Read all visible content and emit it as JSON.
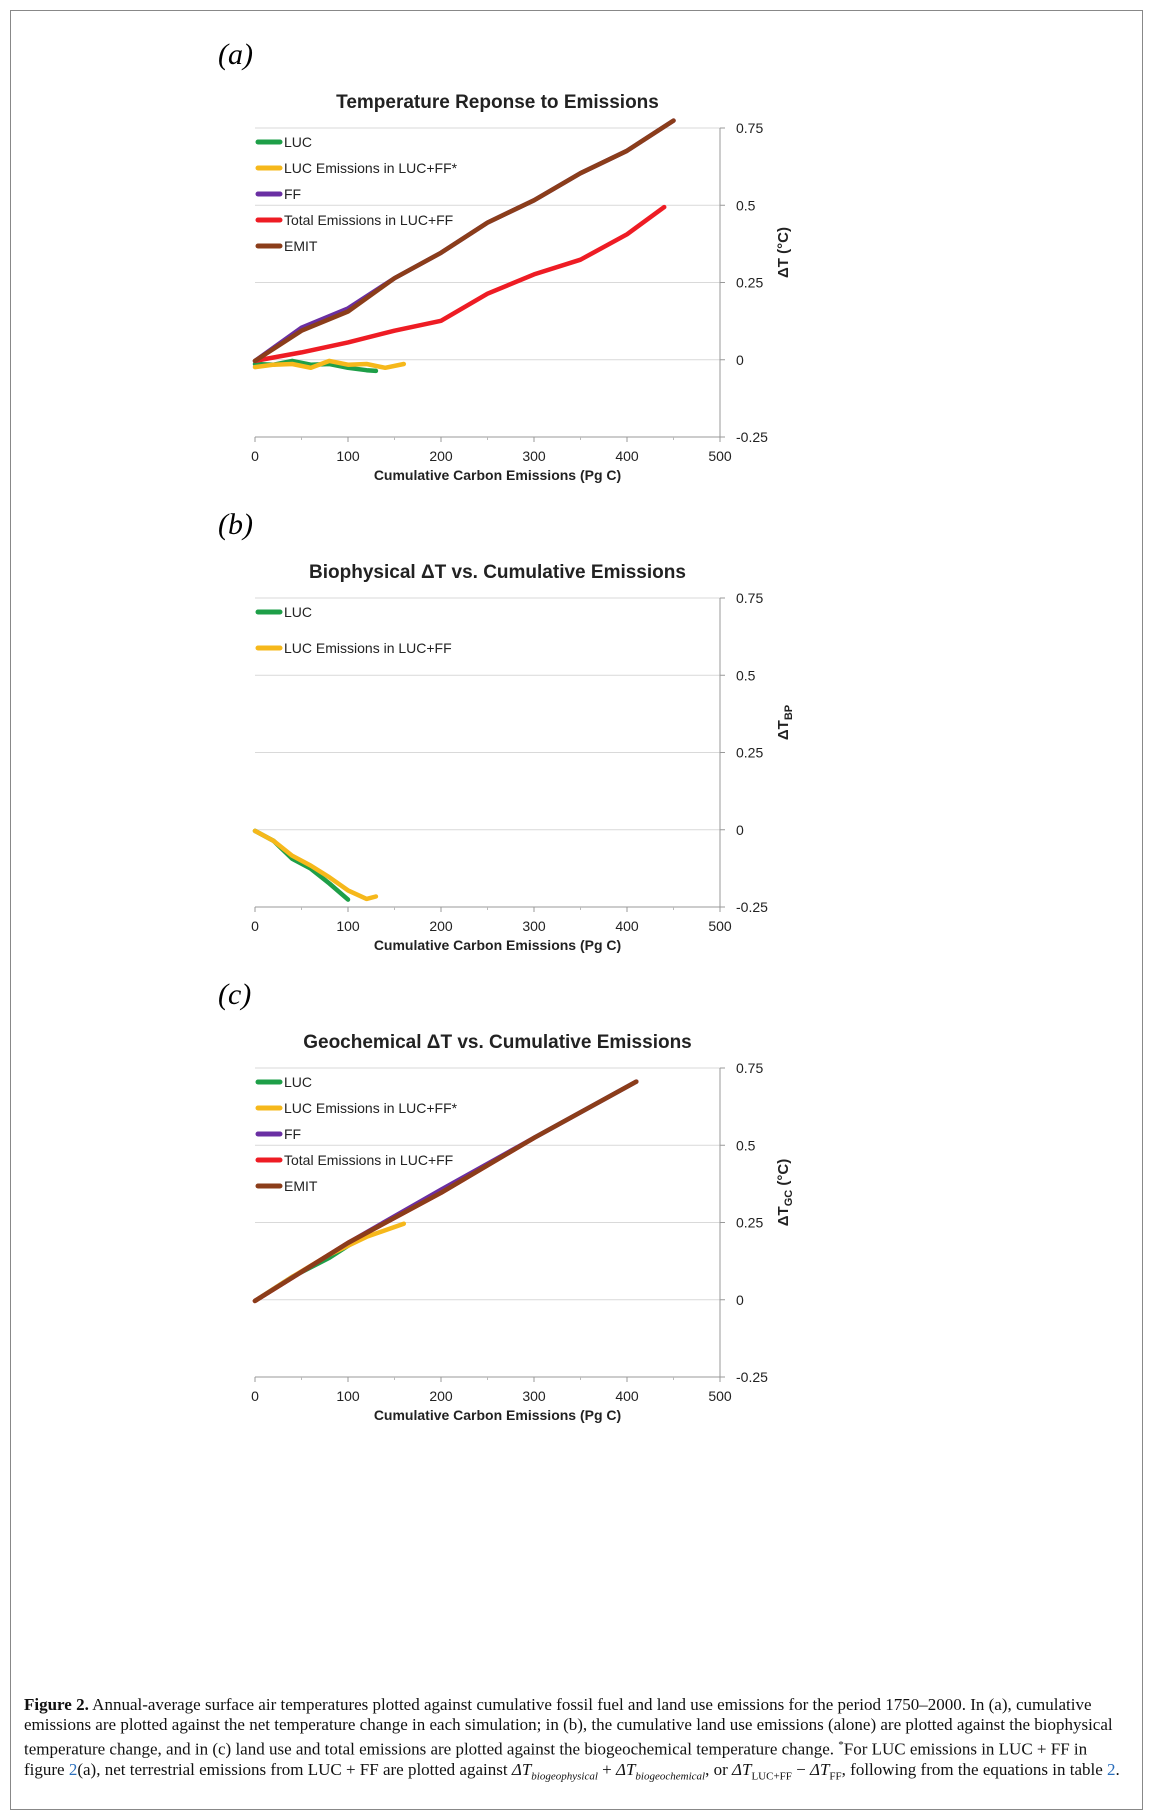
{
  "charts": {
    "colors": {
      "LUC": "#1e9f48",
      "LUC_alt": "#f6b81b",
      "FF": "#6a2fa3",
      "Total": "#ee1c24",
      "EMIT": "#8b3d1a"
    },
    "xticks": [
      "0",
      "100",
      "200",
      "300",
      "400",
      "500"
    ],
    "yticks": [
      "0.75",
      "0.5",
      "0.25",
      "0",
      "-0.25"
    ]
  },
  "chart_data": [
    {
      "type": "line",
      "panel_label": "(a)",
      "title": "Temperature Reponse to Emissions",
      "xlabel": "Cumulative Carbon Emissions (Pg C)",
      "ylabel": "ΔT (°C)",
      "ylabel_sub": "",
      "xlim": [
        0,
        500
      ],
      "ylim": [
        -0.25,
        0.75
      ],
      "grid": true,
      "legend_position": "top-left",
      "series": [
        {
          "name": "LUC",
          "color": "#1e9f48",
          "x": [
            0,
            20,
            40,
            60,
            80,
            100,
            120,
            130
          ],
          "y": [
            -0.01,
            -0.02,
            0.0,
            -0.02,
            -0.01,
            -0.03,
            -0.03,
            -0.04
          ]
        },
        {
          "name": "LUC Emissions in LUC+FF*",
          "color": "#f6b81b",
          "x": [
            0,
            20,
            40,
            60,
            80,
            100,
            120,
            140,
            160
          ],
          "y": [
            -0.02,
            -0.02,
            -0.01,
            -0.03,
            0.0,
            -0.02,
            -0.01,
            -0.03,
            -0.01
          ]
        },
        {
          "name": "FF",
          "color": "#6a2fa3",
          "x": [
            0,
            50,
            100,
            150,
            200,
            250,
            300,
            350,
            400,
            450
          ],
          "y": [
            0.0,
            0.1,
            0.17,
            0.26,
            0.35,
            0.44,
            0.52,
            0.6,
            0.68,
            0.77
          ]
        },
        {
          "name": "Total Emissions in LUC+FF",
          "color": "#ee1c24",
          "x": [
            0,
            50,
            100,
            150,
            200,
            250,
            300,
            350,
            400,
            440
          ],
          "y": [
            0.0,
            0.02,
            0.06,
            0.09,
            0.13,
            0.21,
            0.28,
            0.32,
            0.41,
            0.49
          ]
        },
        {
          "name": "EMIT",
          "color": "#8b3d1a",
          "x": [
            0,
            50,
            100,
            150,
            200,
            250,
            300,
            350,
            400,
            450
          ],
          "y": [
            0.0,
            0.09,
            0.16,
            0.26,
            0.35,
            0.44,
            0.52,
            0.6,
            0.68,
            0.77
          ]
        }
      ]
    },
    {
      "type": "line",
      "panel_label": "(b)",
      "title": "Biophysical ΔT vs. Cumulative Emissions",
      "xlabel": "Cumulative Carbon Emissions (Pg C)",
      "ylabel": "ΔT",
      "ylabel_sub": "BP",
      "xlim": [
        0,
        500
      ],
      "ylim": [
        -0.25,
        0.75
      ],
      "grid": true,
      "legend_position": "top-left",
      "series": [
        {
          "name": "LUC",
          "color": "#1e9f48",
          "x": [
            0,
            20,
            40,
            60,
            80,
            100
          ],
          "y": [
            0.0,
            -0.04,
            -0.09,
            -0.13,
            -0.17,
            -0.23
          ]
        },
        {
          "name": "LUC Emissions in LUC+FF",
          "color": "#f6b81b",
          "x": [
            0,
            20,
            40,
            60,
            80,
            100,
            120,
            130
          ],
          "y": [
            0.0,
            -0.04,
            -0.08,
            -0.12,
            -0.15,
            -0.2,
            -0.22,
            -0.22
          ]
        }
      ]
    },
    {
      "type": "line",
      "panel_label": "(c)",
      "title": "Geochemical ΔT vs. Cumulative Emissions",
      "xlabel": "Cumulative Carbon Emissions (Pg C)",
      "ylabel": "ΔT",
      "ylabel_sub": "GC",
      "ylabel_suffix": " (°C)",
      "xlim": [
        0,
        500
      ],
      "ylim": [
        -0.25,
        0.75
      ],
      "grid": true,
      "legend_position": "top-left",
      "series": [
        {
          "name": "LUC",
          "color": "#1e9f48",
          "x": [
            0,
            40,
            80,
            120
          ],
          "y": [
            0.0,
            0.07,
            0.14,
            0.21
          ]
        },
        {
          "name": "LUC Emissions in LUC+FF*",
          "color": "#f6b81b",
          "x": [
            0,
            40,
            80,
            120,
            160
          ],
          "y": [
            0.0,
            0.07,
            0.15,
            0.2,
            0.25
          ]
        },
        {
          "name": "FF",
          "color": "#6a2fa3",
          "x": [
            0,
            100,
            200,
            300,
            410
          ],
          "y": [
            0.0,
            0.18,
            0.36,
            0.52,
            0.71
          ]
        },
        {
          "name": "Total Emissions in LUC+FF",
          "color": "#ee1c24",
          "x": [
            0,
            100,
            200,
            300
          ],
          "y": [
            0.0,
            0.18,
            0.35,
            0.52
          ]
        },
        {
          "name": "EMIT",
          "color": "#8b3d1a",
          "x": [
            0,
            100,
            200,
            300,
            410
          ],
          "y": [
            0.0,
            0.18,
            0.35,
            0.52,
            0.71
          ]
        }
      ]
    }
  ],
  "caption": {
    "label": "Figure 2.",
    "text1": " Annual-average surface air temperatures plotted against cumulative fossil fuel and land use emissions for the period 1750–2000. In (a), cumulative emissions are plotted against the net temperature change in each simulation; in (b), the cumulative land use emissions (alone) are plotted against the biophysical temperature change, and in (c) land use and total emissions are plotted against the biogeochemical temperature change. ",
    "star": "*",
    "text2": "For LUC emissions in LUC + FF in figure ",
    "figref": "2",
    "text3": "(a), net terrestrial emissions from LUC + FF are plotted against ",
    "eq1": "ΔT",
    "eq1_sub": "biogeophysical",
    "plus": " + ",
    "eq2": "ΔT",
    "eq2_sub": "biogeochemical",
    "or": ", or ",
    "eq3": "ΔT",
    "eq3_sub": "LUC+FF",
    "minus": " − ",
    "eq4": "ΔT",
    "eq4_sub": "FF",
    "text4": ", following from the equations in table ",
    "tableref": "2",
    "end": "."
  }
}
